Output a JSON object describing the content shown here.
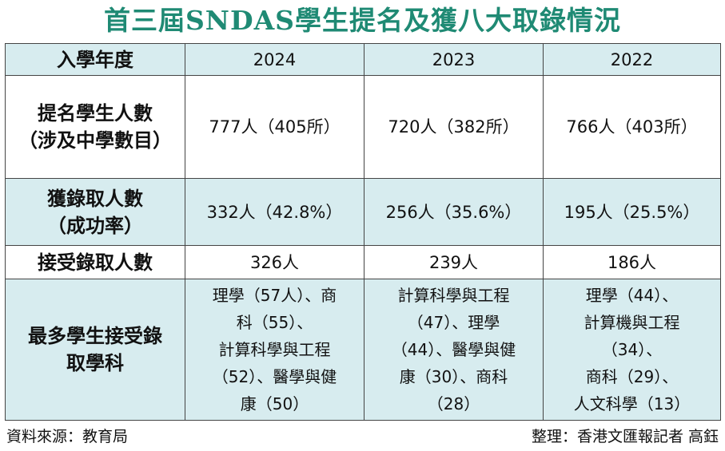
{
  "title": "首三屆SNDAS學生提名及獲八大取錄情況",
  "header": {
    "label": "入學年度",
    "years": [
      "2024",
      "2023",
      "2022"
    ]
  },
  "rows": [
    {
      "label": [
        "提名學生人數",
        "（涉及中學數目）"
      ],
      "values": [
        "777人（405所）",
        "720人（382所）",
        "766人（403所）"
      ]
    },
    {
      "label": [
        "獲錄取人數",
        "（成功率）"
      ],
      "values": [
        "332人（42.8%）",
        "256人（35.6%）",
        "195人（25.5%）"
      ]
    },
    {
      "label": [
        "接受錄取人數"
      ],
      "values": [
        "326人",
        "239人",
        "186人"
      ]
    }
  ],
  "subjects": {
    "label": [
      "最多學生接受錄",
      "取學科"
    ],
    "values": [
      [
        "理學（57人）、商",
        "科（55）、",
        "計算科學與工程",
        "（52）、醫學與健",
        "康（50）"
      ],
      [
        "計算科學與工程",
        "（47）、理學",
        "（44）、醫學與健",
        "康（30）、商科",
        "（28）"
      ],
      [
        "理學（44）、",
        "計算機與工程",
        "（34）、",
        "商科（29）、",
        "人文科學（13）"
      ]
    ]
  },
  "footer": {
    "source": "資料來源：教育局",
    "credit": "整理：香港文匯報記者 高鈺"
  }
}
